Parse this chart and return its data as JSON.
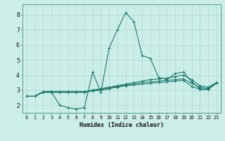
{
  "xlabel": "Humidex (Indice chaleur)",
  "bg_color": "#cceee8",
  "grid_color": "#b0d8d0",
  "line_color": "#1a7a6e",
  "xlim": [
    -0.5,
    23.5
  ],
  "ylim": [
    1.5,
    8.7
  ],
  "xticks": [
    0,
    1,
    2,
    3,
    4,
    5,
    6,
    7,
    8,
    9,
    10,
    11,
    12,
    13,
    14,
    15,
    16,
    17,
    18,
    19,
    20,
    21,
    22,
    23
  ],
  "yticks": [
    2,
    3,
    4,
    5,
    6,
    7,
    8
  ],
  "series": [
    [
      2.6,
      2.6,
      2.9,
      2.9,
      2.0,
      1.85,
      1.75,
      1.85,
      4.2,
      2.85,
      5.8,
      7.0,
      8.15,
      7.55,
      5.3,
      5.1,
      3.85,
      3.7,
      4.1,
      4.2,
      3.55,
      3.1,
      3.05,
      3.5
    ],
    [
      2.6,
      2.6,
      2.85,
      2.85,
      2.85,
      2.85,
      2.85,
      2.85,
      2.95,
      3.0,
      3.1,
      3.2,
      3.3,
      3.35,
      3.4,
      3.45,
      3.5,
      3.55,
      3.6,
      3.65,
      3.25,
      3.05,
      3.05,
      3.45
    ],
    [
      2.6,
      2.6,
      2.9,
      2.9,
      2.9,
      2.9,
      2.9,
      2.9,
      3.0,
      3.05,
      3.15,
      3.25,
      3.35,
      3.4,
      3.5,
      3.55,
      3.6,
      3.65,
      3.7,
      3.75,
      3.45,
      3.2,
      3.1,
      3.5
    ],
    [
      2.6,
      2.6,
      2.9,
      2.9,
      2.9,
      2.9,
      2.9,
      2.9,
      3.0,
      3.1,
      3.2,
      3.3,
      3.4,
      3.5,
      3.6,
      3.7,
      3.75,
      3.8,
      3.9,
      4.0,
      3.7,
      3.3,
      3.2,
      3.5
    ]
  ]
}
